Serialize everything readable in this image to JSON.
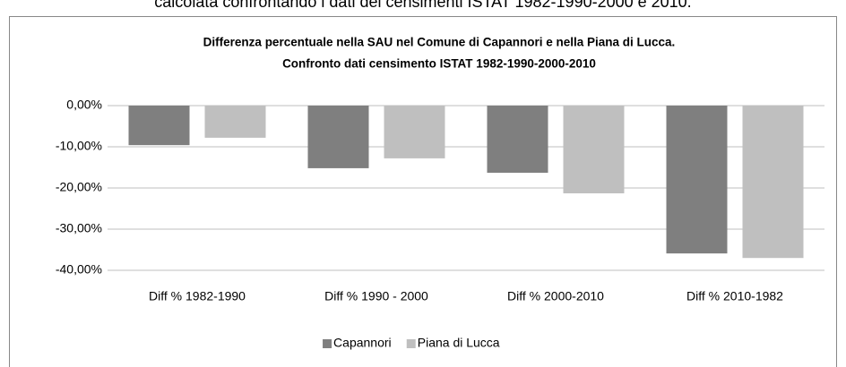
{
  "caption": "calcolata confrontando i dati dei censimenti ISTAT 1982-1990-2000 e 2010.",
  "chart_data": {
    "type": "bar",
    "title": [
      "Differenza percentuale nella SAU nel Comune di Capannori e nella Piana di Lucca.",
      "Confronto dati censimento ISTAT 1982-1990-2000-2010"
    ],
    "categories": [
      "Diff % 1982-1990",
      "Diff % 1990 - 2000",
      "Diff % 2000-2010",
      "Diff % 2010-1982"
    ],
    "series": [
      {
        "name": "Capannori",
        "color": "#7f7f7f",
        "values": [
          -9.6,
          -15.2,
          -16.3,
          -35.9
        ]
      },
      {
        "name": "Piana di Lucca",
        "color": "#bfbfbf",
        "values": [
          -7.8,
          -12.8,
          -21.3,
          -37.0
        ]
      }
    ],
    "ylim": [
      -40,
      0
    ],
    "yticks": [
      {
        "value": 0,
        "label": "0,00%"
      },
      {
        "value": -10,
        "label": "-10,00%"
      },
      {
        "value": -20,
        "label": "-20,00%"
      },
      {
        "value": -30,
        "label": "-30,00%"
      },
      {
        "value": -40,
        "label": "-40,00%"
      }
    ],
    "grid": true,
    "legend": "bottom"
  }
}
